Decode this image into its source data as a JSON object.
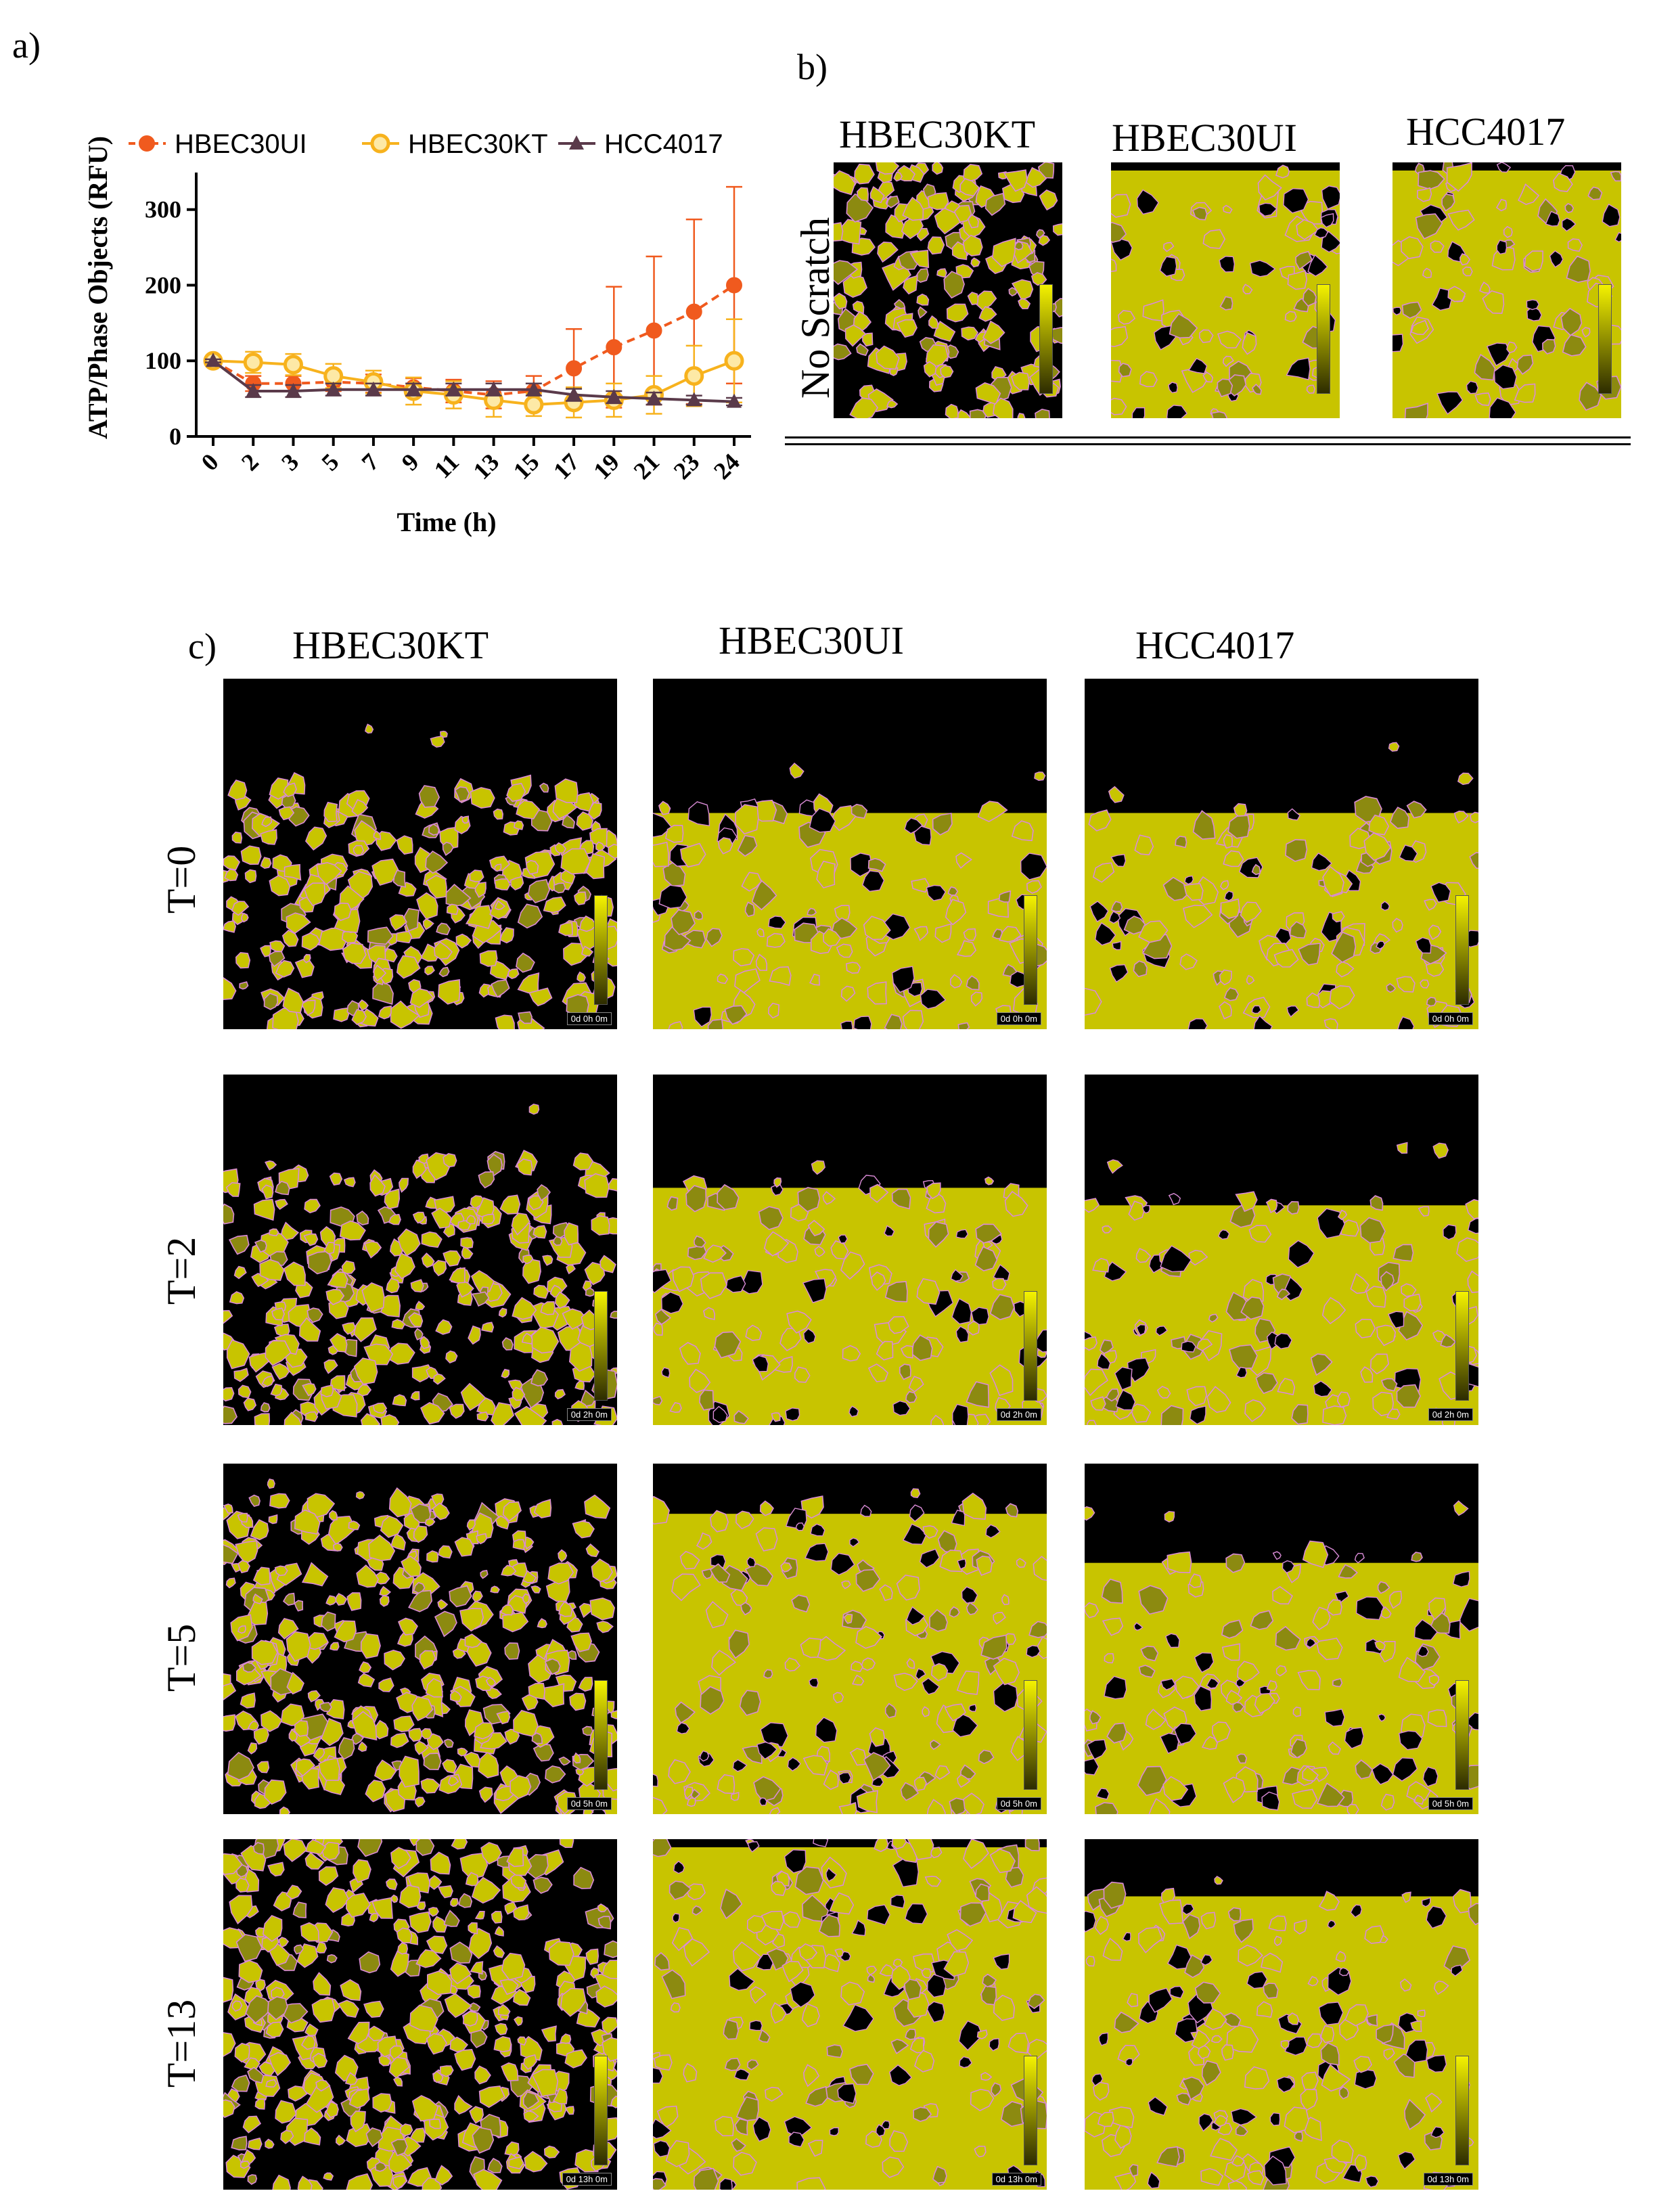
{
  "panels": {
    "a": "a)",
    "b": "b)",
    "c": "c)"
  },
  "chart_data": {
    "type": "line",
    "xlabel": "Time (h)",
    "ylabel": "ATP/Phase Objects (RFU)",
    "x": [
      0,
      2,
      3,
      5,
      7,
      9,
      11,
      13,
      15,
      17,
      19,
      21,
      23,
      24
    ],
    "x_ticks": [
      "0",
      "2",
      "3",
      "5",
      "7",
      "9",
      "11",
      "13",
      "15",
      "17",
      "19",
      "21",
      "23",
      "24"
    ],
    "ylim": [
      0,
      340
    ],
    "y_ticks": [
      "0",
      "100",
      "200",
      "300"
    ],
    "y_tick_values": [
      0,
      100,
      200,
      300
    ],
    "legend_position": "top",
    "series": [
      {
        "name": "HBEC30UI",
        "color": "#f05a1e",
        "marker": "filled-circle",
        "dashed": true,
        "values": [
          100,
          70,
          70,
          72,
          70,
          65,
          60,
          55,
          60,
          90,
          118,
          140,
          165,
          200
        ],
        "err": [
          3,
          10,
          10,
          12,
          12,
          12,
          15,
          18,
          20,
          52,
          80,
          98,
          122,
          130
        ]
      },
      {
        "name": "HBEC30KT",
        "color": "#f7b21d",
        "marker": "open-circle",
        "dashed": false,
        "values": [
          100,
          98,
          95,
          80,
          72,
          60,
          55,
          48,
          42,
          45,
          48,
          55,
          80,
          100
        ],
        "err": [
          3,
          14,
          14,
          16,
          15,
          18,
          18,
          22,
          15,
          20,
          22,
          25,
          40,
          55
        ]
      },
      {
        "name": "HCC4017",
        "color": "#5a3a4a",
        "marker": "triangle",
        "dashed": false,
        "values": [
          100,
          60,
          60,
          62,
          62,
          62,
          62,
          62,
          62,
          55,
          52,
          50,
          48,
          46
        ],
        "err": [
          2,
          8,
          8,
          8,
          8,
          8,
          8,
          8,
          8,
          8,
          8,
          8,
          6,
          5
        ]
      }
    ]
  },
  "panel_b": {
    "headers": [
      "HBEC30KT",
      "HBEC30UI",
      "HCC4017"
    ],
    "row_label": "No Scratch"
  },
  "panel_c": {
    "headers": [
      "HBEC30KT",
      "HBEC30UI",
      "HCC4017"
    ],
    "rows": [
      {
        "label": "T=0",
        "stamp": "0d 0h 0m"
      },
      {
        "label": "T=2",
        "stamp": "0d 2h 0m"
      },
      {
        "label": "T=5",
        "stamp": "0d 5h 0m"
      },
      {
        "label": "T=13",
        "stamp": "0d 13h 0m"
      }
    ]
  },
  "colors": {
    "cell_fill": "#c8c400",
    "cell_dark": "#8c8a10",
    "outline": "#d98bd6",
    "background": "#000000"
  }
}
